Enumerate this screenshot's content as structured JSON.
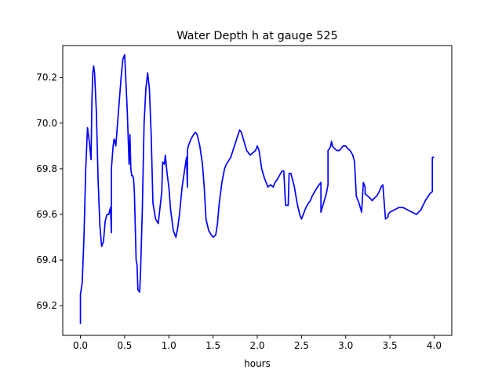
{
  "chart_data": {
    "type": "line",
    "title": "Water Depth h at gauge 525",
    "xlabel": "hours",
    "ylabel": "",
    "xlim": [
      -0.2,
      4.2
    ],
    "ylim": [
      69.07,
      70.34
    ],
    "xticks": [
      0.0,
      0.5,
      1.0,
      1.5,
      2.0,
      2.5,
      3.0,
      3.5,
      4.0
    ],
    "xtick_labels": [
      "0.0",
      "0.5",
      "1.0",
      "1.5",
      "2.0",
      "2.5",
      "3.0",
      "3.5",
      "4.0"
    ],
    "yticks": [
      69.2,
      69.4,
      69.6,
      69.8,
      70.0,
      70.2
    ],
    "ytick_labels": [
      "69.2",
      "69.4",
      "69.6",
      "69.8",
      "70.0",
      "70.2"
    ],
    "grid": false,
    "color": "#0000ff",
    "series": [
      {
        "x": [
          0.0,
          0.0,
          0.02,
          0.04,
          0.06,
          0.08,
          0.1,
          0.12,
          0.13,
          0.14,
          0.15,
          0.16,
          0.18,
          0.2,
          0.22,
          0.24,
          0.26,
          0.28,
          0.3,
          0.32,
          0.34,
          0.35,
          0.35,
          0.37,
          0.38,
          0.39,
          0.4,
          0.42,
          0.44,
          0.46,
          0.48,
          0.5,
          0.51,
          0.53,
          0.55,
          0.56,
          0.57,
          0.58,
          0.59,
          0.6,
          0.61,
          0.62,
          0.63,
          0.64,
          0.65,
          0.67,
          0.68,
          0.7,
          0.72,
          0.74,
          0.76,
          0.78,
          0.8,
          0.82,
          0.85,
          0.88,
          0.9,
          0.92,
          0.93,
          0.95,
          0.96,
          0.98,
          1.0,
          1.02,
          1.05,
          1.08,
          1.1,
          1.12,
          1.15,
          1.18,
          1.2,
          1.21,
          1.21,
          1.22,
          1.25,
          1.28,
          1.3,
          1.32,
          1.35,
          1.38,
          1.4,
          1.42,
          1.45,
          1.48,
          1.5,
          1.53,
          1.55,
          1.57,
          1.6,
          1.63,
          1.65,
          1.7,
          1.75,
          1.8,
          1.82,
          1.85,
          1.88,
          1.9,
          1.92,
          1.95,
          1.98,
          2.0,
          2.02,
          2.05,
          2.08,
          2.1,
          2.12,
          2.15,
          2.18,
          2.2,
          2.22,
          2.25,
          2.28,
          2.3,
          2.32,
          2.33,
          2.35,
          2.36,
          2.38,
          2.4,
          2.42,
          2.45,
          2.48,
          2.5,
          2.52,
          2.55,
          2.58,
          2.6,
          2.62,
          2.65,
          2.68,
          2.7,
          2.72,
          2.72,
          2.75,
          2.78,
          2.8,
          2.8,
          2.82,
          2.83,
          2.84,
          2.85,
          2.87,
          2.9,
          2.93,
          2.95,
          2.97,
          3.0,
          3.02,
          3.05,
          3.08,
          3.1,
          3.12,
          3.15,
          3.18,
          3.2,
          3.22,
          3.22,
          3.25,
          3.28,
          3.3,
          3.32,
          3.35,
          3.38,
          3.4,
          3.42,
          3.45,
          3.48,
          3.48,
          3.5,
          3.55,
          3.6,
          3.65,
          3.7,
          3.75,
          3.8,
          3.85,
          3.9,
          3.95,
          3.98,
          3.98,
          4.0
        ],
        "y": [
          69.12,
          69.25,
          69.3,
          69.5,
          69.8,
          69.98,
          69.92,
          69.84,
          70.1,
          70.22,
          70.25,
          70.22,
          70.05,
          69.75,
          69.55,
          69.46,
          69.48,
          69.57,
          69.6,
          69.6,
          69.63,
          69.52,
          69.8,
          69.9,
          69.93,
          69.92,
          69.9,
          70.0,
          70.1,
          70.2,
          70.28,
          70.3,
          70.22,
          70.05,
          69.82,
          69.95,
          69.8,
          69.77,
          69.77,
          69.76,
          69.7,
          69.55,
          69.4,
          69.38,
          69.27,
          69.26,
          69.35,
          69.62,
          70.0,
          70.15,
          70.22,
          70.15,
          69.95,
          69.65,
          69.58,
          69.56,
          69.63,
          69.7,
          69.83,
          69.82,
          69.86,
          69.78,
          69.72,
          69.62,
          69.53,
          69.5,
          69.54,
          69.6,
          69.72,
          69.8,
          69.85,
          69.72,
          69.88,
          69.9,
          69.93,
          69.95,
          69.96,
          69.95,
          69.9,
          69.82,
          69.72,
          69.58,
          69.53,
          69.51,
          69.5,
          69.51,
          69.56,
          69.65,
          69.74,
          69.8,
          69.82,
          69.85,
          69.91,
          69.97,
          69.96,
          69.92,
          69.88,
          69.87,
          69.86,
          69.87,
          69.88,
          69.9,
          69.88,
          69.8,
          69.76,
          69.74,
          69.72,
          69.73,
          69.72,
          69.74,
          69.75,
          69.77,
          69.79,
          69.79,
          69.64,
          69.64,
          69.64,
          69.78,
          69.78,
          69.75,
          69.72,
          69.65,
          69.6,
          69.58,
          69.6,
          69.63,
          69.65,
          69.66,
          69.68,
          69.7,
          69.72,
          69.73,
          69.74,
          69.61,
          69.65,
          69.69,
          69.73,
          69.88,
          69.89,
          69.9,
          69.92,
          69.9,
          69.89,
          69.88,
          69.88,
          69.89,
          69.9,
          69.9,
          69.89,
          69.88,
          69.86,
          69.83,
          69.68,
          69.65,
          69.61,
          69.74,
          69.72,
          69.69,
          69.68,
          69.67,
          69.66,
          69.67,
          69.68,
          69.7,
          69.72,
          69.73,
          69.58,
          69.59,
          69.6,
          69.61,
          69.62,
          69.63,
          69.63,
          69.62,
          69.61,
          69.6,
          69.62,
          69.66,
          69.69,
          69.7,
          69.85,
          69.85
        ]
      }
    ]
  }
}
